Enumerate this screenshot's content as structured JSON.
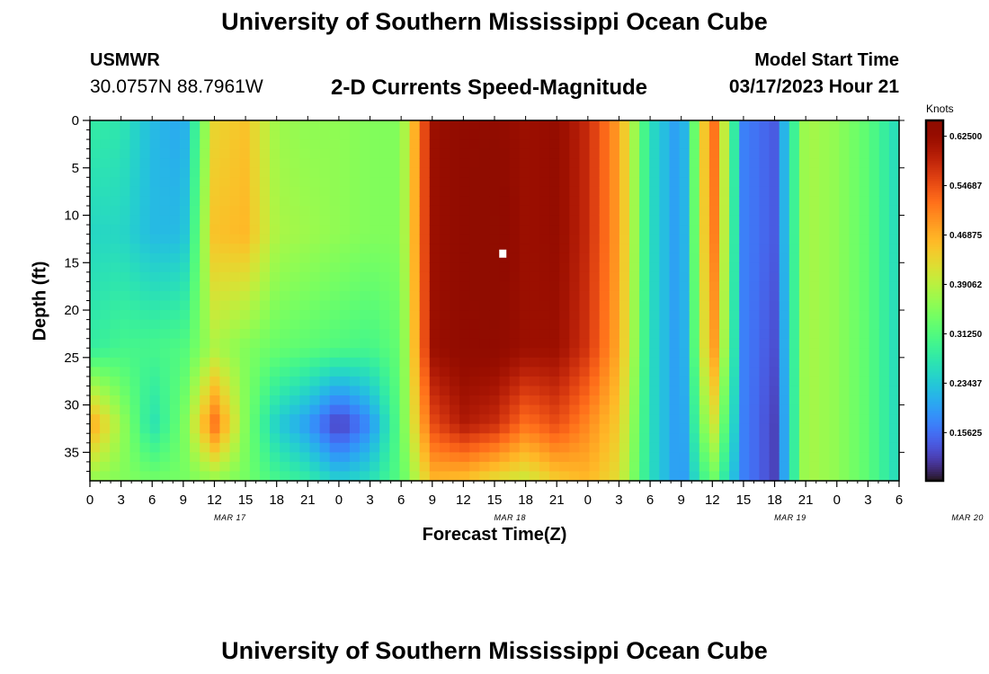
{
  "header": {
    "title": "University of Southern Mississippi Ocean Cube",
    "station_code": "USMWR",
    "station_location": "30.0757N  88.7961W",
    "subtitle": "2-D Currents Speed-Magnitude",
    "model_start_label": "Model Start Time",
    "model_start_value": "03/17/2023 Hour 21"
  },
  "footer": {
    "title": "University of Southern Mississippi Ocean Cube"
  },
  "chart_data": {
    "type": "heatmap",
    "title": "2-D Currents Speed-Magnitude",
    "xlabel": "Forecast Time(Z)",
    "ylabel": "Depth (ft)",
    "x_tick_labels": [
      "0",
      "3",
      "6",
      "9",
      "12",
      "15",
      "18",
      "21",
      "0",
      "3",
      "6",
      "9",
      "12",
      "15",
      "18",
      "21",
      "0",
      "3",
      "6",
      "9",
      "12",
      "15",
      "18",
      "21",
      "0",
      "3",
      "6"
    ],
    "date_labels": [
      {
        "label": "MAR 17",
        "hour_index": 4.5
      },
      {
        "label": "MAR 18",
        "hour_index": 13.5
      },
      {
        "label": "MAR 19",
        "hour_index": 22.5
      },
      {
        "label": "MAR 20",
        "hour_index": 28.2
      }
    ],
    "x_range_hours": [
      0,
      78
    ],
    "y_ticks": [
      0,
      5,
      10,
      15,
      20,
      25,
      30,
      35
    ],
    "y_range_ft": [
      0,
      38
    ],
    "colorbar": {
      "label": "Knots",
      "ticks": [
        "0.15625",
        "0.23437",
        "0.31250",
        "0.39062",
        "0.46875",
        "0.54687",
        "0.62500"
      ],
      "tick_values": [
        0.15625,
        0.234375,
        0.3125,
        0.390625,
        0.46875,
        0.546875,
        0.625
      ],
      "range": [
        0.08,
        0.65
      ],
      "colormap": "turbo"
    },
    "columns_per_3h": 3,
    "rows": 38,
    "speed_grid_hour_points": [
      0,
      3,
      6,
      9,
      12,
      15,
      18,
      21,
      24,
      27,
      30,
      33,
      36,
      39,
      42,
      45,
      48,
      51,
      54,
      57,
      60,
      63,
      66,
      69,
      72,
      75,
      78
    ],
    "speed_grid_depths_ft": [
      0,
      12,
      24,
      32,
      38
    ],
    "speed_grid_knots": [
      [
        0.28,
        0.27,
        0.22,
        0.2,
        0.43,
        0.45,
        0.37,
        0.36,
        0.36,
        0.35,
        0.35,
        0.62,
        0.64,
        0.64,
        0.62,
        0.63,
        0.58,
        0.48,
        0.26,
        0.18,
        0.54,
        0.17,
        0.14,
        0.38,
        0.36,
        0.32,
        0.25
      ],
      [
        0.25,
        0.25,
        0.22,
        0.22,
        0.45,
        0.46,
        0.38,
        0.37,
        0.36,
        0.35,
        0.35,
        0.62,
        0.64,
        0.65,
        0.62,
        0.63,
        0.58,
        0.48,
        0.26,
        0.18,
        0.53,
        0.17,
        0.14,
        0.38,
        0.36,
        0.32,
        0.25
      ],
      [
        0.28,
        0.3,
        0.3,
        0.31,
        0.38,
        0.35,
        0.33,
        0.32,
        0.31,
        0.3,
        0.33,
        0.62,
        0.64,
        0.64,
        0.62,
        0.62,
        0.57,
        0.47,
        0.26,
        0.18,
        0.5,
        0.17,
        0.13,
        0.38,
        0.36,
        0.32,
        0.25
      ],
      [
        0.48,
        0.37,
        0.26,
        0.34,
        0.52,
        0.35,
        0.24,
        0.19,
        0.11,
        0.18,
        0.33,
        0.55,
        0.6,
        0.58,
        0.52,
        0.55,
        0.5,
        0.44,
        0.26,
        0.18,
        0.42,
        0.17,
        0.12,
        0.38,
        0.36,
        0.32,
        0.25
      ],
      [
        0.36,
        0.35,
        0.34,
        0.34,
        0.36,
        0.34,
        0.3,
        0.28,
        0.24,
        0.26,
        0.32,
        0.46,
        0.45,
        0.42,
        0.4,
        0.44,
        0.46,
        0.42,
        0.26,
        0.18,
        0.34,
        0.17,
        0.12,
        0.38,
        0.36,
        0.32,
        0.25
      ]
    ],
    "annotations": [
      {
        "type": "white-marker",
        "hour": 39.8,
        "depth_ft": 14
      }
    ]
  }
}
